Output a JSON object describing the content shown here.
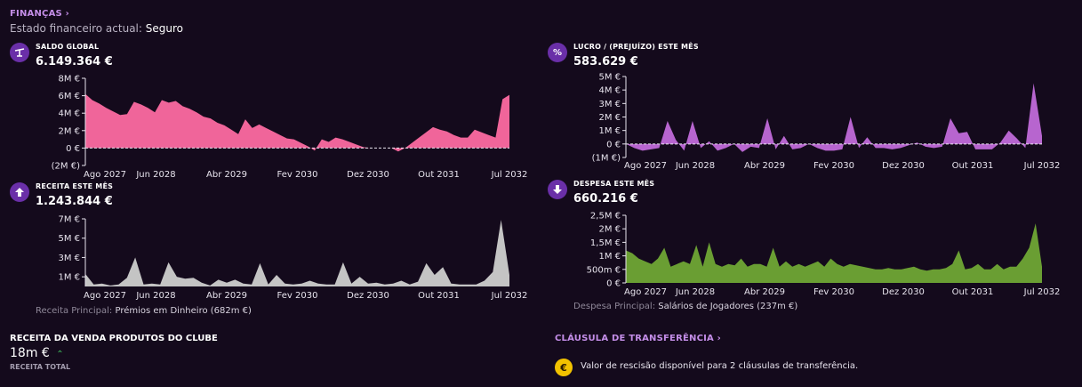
{
  "header": {
    "title": "FINANÇAS",
    "state_label": "Estado financeiro actual:",
    "state_value": "Seguro"
  },
  "colors": {
    "background": "#140a1c",
    "accent": "#c48ee8",
    "icon_bg": "#6a2fa8",
    "saldo": "#f0659a",
    "lucro": "#b765cf",
    "receita": "#c4c4c4",
    "despesa": "#6a9e33"
  },
  "saldo": {
    "icon": "scale-icon",
    "label": "SALDO GLOBAL",
    "value": "6.149.364 €"
  },
  "lucro": {
    "icon": "percent-icon",
    "label": "LUCRO / (PREJUÍZO) ESTE MÊS",
    "value": "583.629 €"
  },
  "receita": {
    "icon": "arrow-up-icon",
    "label": "RECEITA ESTE MÊS",
    "value": "1.243.844 €",
    "principal_label": "Receita Principal:",
    "principal_value": "Prémios em Dinheiro (682m €)"
  },
  "despesa": {
    "icon": "arrow-down-icon",
    "label": "DESPESA ESTE MÊS",
    "value": "660.216 €",
    "principal_label": "Despesa Principal:",
    "principal_value": "Salários de Jogadores (237m €)"
  },
  "sales": {
    "title": "RECEITA DA VENDA PRODUTOS DO CLUBE",
    "value": "18m €",
    "trend_icon": "chevron-up-icon",
    "subtitle": "RECEITA TOTAL"
  },
  "clause": {
    "title": "CLÁUSULA DE TRANSFERÊNCIA",
    "coin_icon": "euro-coin-icon",
    "coin_symbol": "€",
    "text": "Valor de rescisão disponível para 2 cláusulas de transferência."
  },
  "chart_data": [
    {
      "name": "saldo",
      "type": "area",
      "x_tick_labels": [
        "Ago 2027",
        "Jun 2028",
        "Abr 2029",
        "Fev 2030",
        "Dez 2030",
        "Out 2031",
        "Jul 2032"
      ],
      "y_tick_labels": [
        "8M €",
        "6M €",
        "4M €",
        "2M €",
        "0 €",
        "(2M €)"
      ],
      "ylim": [
        -2,
        8
      ],
      "y_ticks": [
        8,
        6,
        4,
        2,
        0,
        -2
      ],
      "values": [
        6.2,
        5.5,
        5.1,
        4.6,
        4.2,
        3.8,
        3.9,
        5.3,
        5.0,
        4.6,
        4.1,
        5.5,
        5.2,
        5.4,
        4.8,
        4.5,
        4.1,
        3.6,
        3.4,
        2.9,
        2.6,
        2.1,
        1.6,
        3.3,
        2.3,
        2.7,
        2.3,
        1.9,
        1.5,
        1.1,
        1.0,
        0.6,
        0.2,
        -0.3,
        1.0,
        0.7,
        1.2,
        1.0,
        0.7,
        0.4,
        0.1,
        0.0,
        0.0,
        0.0,
        0.0,
        -0.4,
        0.0,
        0.6,
        1.2,
        1.8,
        2.4,
        2.1,
        1.9,
        1.5,
        1.2,
        1.2,
        2.1,
        1.8,
        1.5,
        1.2,
        5.6,
        6.1
      ]
    },
    {
      "name": "lucro",
      "type": "area",
      "x_tick_labels": [
        "Ago 2027",
        "Jun 2028",
        "Abr 2029",
        "Fev 2030",
        "Dez 2030",
        "Out 2031",
        "Jul 2032"
      ],
      "y_tick_labels": [
        "5M €",
        "4M €",
        "3M €",
        "2M €",
        "1M €",
        "0 €",
        "(1M €)"
      ],
      "ylim": [
        -1,
        5
      ],
      "y_ticks": [
        5,
        4,
        3,
        2,
        1,
        0,
        -1
      ],
      "values": [
        0.0,
        -0.3,
        -0.5,
        -0.4,
        -0.3,
        1.7,
        0.3,
        -0.5,
        1.7,
        -0.3,
        0.2,
        -0.5,
        -0.3,
        0.0,
        -0.6,
        -0.2,
        -0.3,
        1.9,
        -0.4,
        0.6,
        -0.4,
        -0.3,
        0.0,
        -0.3,
        -0.5,
        -0.5,
        -0.4,
        2.0,
        -0.3,
        0.5,
        -0.3,
        -0.3,
        -0.4,
        -0.3,
        -0.1,
        0.1,
        -0.2,
        -0.3,
        -0.2,
        1.9,
        0.8,
        0.9,
        -0.4,
        -0.4,
        -0.4,
        0.1,
        1.0,
        0.4,
        -0.3,
        4.5,
        0.6
      ]
    },
    {
      "name": "receita",
      "type": "area",
      "x_tick_labels": [
        "Ago 2027",
        "Jun 2028",
        "Abr 2029",
        "Fev 2030",
        "Dez 2030",
        "Out 2031",
        "Jul 2032"
      ],
      "y_tick_labels": [
        "7M €",
        "5M €",
        "3M €",
        "1M €"
      ],
      "ylim": [
        0,
        7
      ],
      "y_ticks": [
        7,
        5,
        3,
        1
      ],
      "values": [
        1.3,
        0.2,
        0.3,
        0.1,
        0.2,
        0.9,
        3.0,
        0.2,
        0.3,
        0.2,
        2.5,
        1.0,
        0.8,
        0.9,
        0.4,
        0.1,
        0.7,
        0.4,
        0.7,
        0.3,
        0.2,
        2.4,
        0.2,
        1.2,
        0.3,
        0.2,
        0.3,
        0.6,
        0.3,
        0.2,
        0.2,
        2.5,
        0.3,
        1.0,
        0.3,
        0.4,
        0.2,
        0.3,
        0.6,
        0.2,
        0.5,
        2.4,
        1.2,
        2.0,
        0.3,
        0.2,
        0.2,
        0.2,
        0.6,
        1.5,
        6.9,
        1.2
      ]
    },
    {
      "name": "despesa",
      "type": "area",
      "x_tick_labels": [
        "Ago 2027",
        "Jun 2028",
        "Abr 2029",
        "Fev 2030",
        "Dez 2030",
        "Out 2031",
        "Jul 2032"
      ],
      "y_tick_labels": [
        "2,5M €",
        "2M €",
        "1,5M €",
        "1M €",
        "500m €",
        "0 €"
      ],
      "ylim": [
        0,
        2.5
      ],
      "y_ticks": [
        2.5,
        2.0,
        1.5,
        1.0,
        0.5,
        0.0
      ],
      "values": [
        1.2,
        1.1,
        0.9,
        0.8,
        0.7,
        0.9,
        1.3,
        0.6,
        0.7,
        0.8,
        0.7,
        1.4,
        0.6,
        1.5,
        0.7,
        0.6,
        0.7,
        0.65,
        0.9,
        0.6,
        0.7,
        0.7,
        0.6,
        1.3,
        0.6,
        0.8,
        0.6,
        0.7,
        0.6,
        0.7,
        0.8,
        0.6,
        0.9,
        0.7,
        0.6,
        0.7,
        0.65,
        0.6,
        0.55,
        0.5,
        0.5,
        0.55,
        0.5,
        0.5,
        0.55,
        0.6,
        0.5,
        0.45,
        0.5,
        0.5,
        0.55,
        0.7,
        1.2,
        0.5,
        0.55,
        0.7,
        0.5,
        0.5,
        0.7,
        0.5,
        0.6,
        0.6,
        0.9,
        1.3,
        2.2,
        0.6
      ]
    }
  ]
}
